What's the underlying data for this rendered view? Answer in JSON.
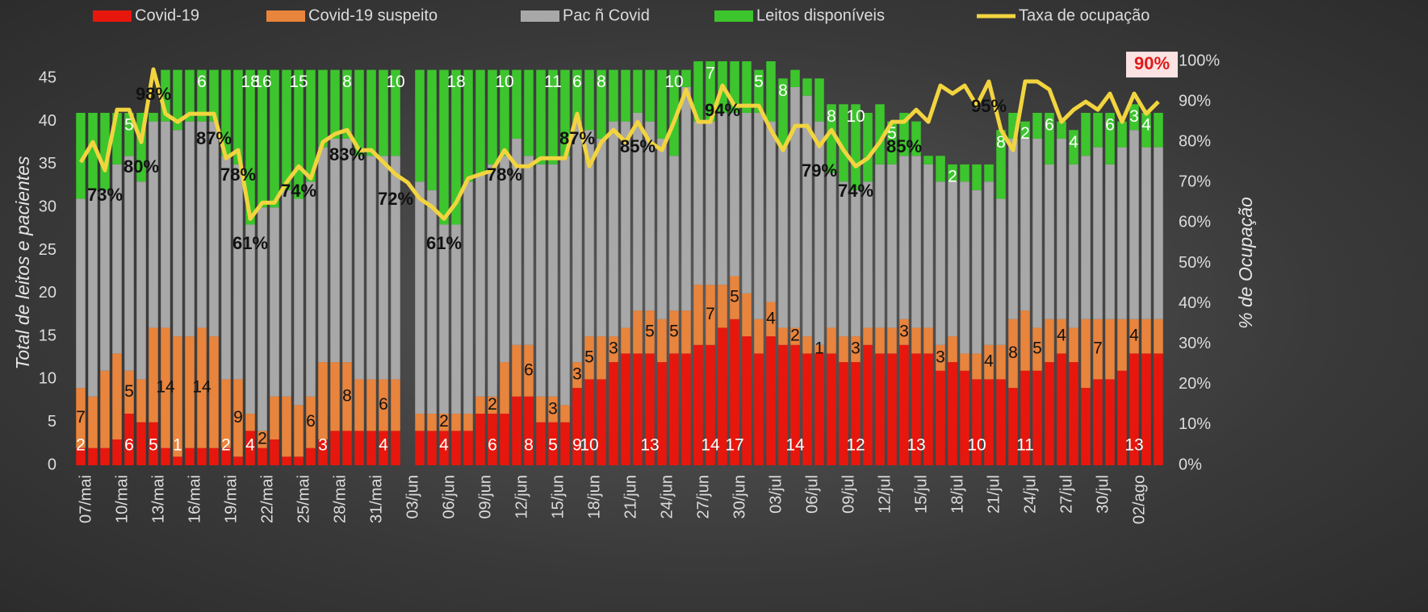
{
  "chart_data": {
    "type": "bar",
    "categories": [
      "07/mai",
      null,
      null,
      "10/mai",
      null,
      null,
      "13/mai",
      null,
      null,
      "16/mai",
      null,
      null,
      "19/mai",
      null,
      null,
      "22/mai",
      null,
      null,
      "25/mai",
      null,
      null,
      "28/mai",
      null,
      null,
      "31/mai",
      null,
      null,
      "03/jun",
      null,
      null,
      "06/jun",
      null,
      null,
      "09/jun",
      null,
      null,
      "12/jun",
      null,
      null,
      "15/jun",
      null,
      null,
      "18/jun",
      null,
      null,
      "21/jun",
      null,
      null,
      "24/jun",
      null,
      null,
      "27/jun",
      null,
      null,
      "30/jun",
      null,
      null,
      "03/jul",
      null,
      null,
      "06/jul",
      null,
      null,
      "09/jul",
      null,
      null,
      "12/jul",
      null,
      null,
      "15/jul",
      null,
      null,
      "18/jul",
      null,
      null,
      "21/jul",
      null,
      null,
      "24/jul",
      null,
      null,
      "27/jul",
      null,
      null,
      "30/jul",
      null,
      null,
      "02/ago",
      null,
      null
    ],
    "y_label": "Total de leitos e pacientes",
    "y2_label": "% de Ocupação",
    "ylim": [
      0,
      47
    ],
    "yticks": [
      0,
      5,
      10,
      15,
      20,
      25,
      30,
      35,
      40,
      45
    ],
    "y2lim": [
      0,
      100
    ],
    "y2ticks": [
      {
        "value": 0,
        "label": "0%"
      },
      {
        "value": 10,
        "label": "10%"
      },
      {
        "value": 20,
        "label": "20%"
      },
      {
        "value": 30,
        "label": "30%"
      },
      {
        "value": 40,
        "label": "40%"
      },
      {
        "value": 50,
        "label": "50%"
      },
      {
        "value": 60,
        "label": "60%"
      },
      {
        "value": 70,
        "label": "70%"
      },
      {
        "value": 80,
        "label": "80%"
      },
      {
        "value": 90,
        "label": "90%"
      },
      {
        "value": 100,
        "label": "100%"
      }
    ],
    "legend": "top",
    "series": [
      {
        "name": "Covid-19",
        "color": "#e8170d",
        "stack": true,
        "values": [
          2,
          2,
          2,
          3,
          6,
          5,
          5,
          2,
          1,
          2,
          2,
          2,
          2,
          1,
          4,
          2,
          3,
          1,
          1,
          2,
          3,
          4,
          4,
          4,
          4,
          4,
          4,
          null,
          4,
          4,
          4,
          4,
          4,
          6,
          6,
          6,
          8,
          8,
          5,
          5,
          5,
          9,
          10,
          10,
          12,
          13,
          13,
          13,
          12,
          13,
          13,
          14,
          14,
          16,
          17,
          15,
          13,
          15,
          14,
          14,
          13,
          13,
          13,
          12,
          12,
          14,
          13,
          13,
          14,
          13,
          13,
          11,
          12,
          11,
          10,
          10,
          10,
          9,
          11,
          11,
          12,
          13,
          12,
          9,
          10,
          10,
          11,
          13,
          13,
          13
        ],
        "value_labels": {
          "0": "2",
          "4": "6",
          "6": "5",
          "8": "1",
          "12": "2",
          "14": "4",
          "20": "3",
          "25": "4",
          "30": "4",
          "34": "6",
          "37": "8",
          "39": "5",
          "41": "9",
          "42": "10",
          "47": "13",
          "52": "14",
          "54": "17",
          "59": "14",
          "64": "12",
          "69": "13",
          "74": "10",
          "78": "11",
          "87": "13"
        }
      },
      {
        "name": "Covid-19 suspeito",
        "color": "#e9843c",
        "stack": true,
        "values": [
          7,
          6,
          9,
          10,
          5,
          5,
          11,
          14,
          14,
          13,
          14,
          13,
          8,
          9,
          2,
          2,
          5,
          7,
          6,
          6,
          9,
          8,
          8,
          6,
          6,
          6,
          6,
          null,
          2,
          2,
          2,
          2,
          2,
          2,
          2,
          6,
          6,
          6,
          3,
          3,
          2,
          3,
          5,
          5,
          3,
          3,
          5,
          5,
          5,
          5,
          5,
          7,
          7,
          5,
          5,
          5,
          4,
          4,
          2,
          2,
          2,
          1,
          3,
          3,
          3,
          2,
          3,
          3,
          3,
          3,
          3,
          3,
          3,
          2,
          3,
          4,
          4,
          8,
          7,
          5,
          5,
          4,
          4,
          8,
          7,
          7,
          6,
          4,
          4,
          4
        ],
        "value_labels": {
          "0": "7",
          "4": "5",
          "7": "14",
          "10": "14",
          "13": "9",
          "15": "2",
          "19": "6",
          "22": "8",
          "25": "6",
          "30": "2",
          "34": "2",
          "37": "6",
          "39": "3",
          "41": "3",
          "42": "5",
          "44": "3",
          "47": "5",
          "49": "5",
          "52": "7",
          "54": "5",
          "57": "4",
          "59": "2",
          "61": "1",
          "64": "3",
          "68": "3",
          "71": "3",
          "75": "4",
          "77": "8",
          "79": "5",
          "81": "4",
          "84": "7",
          "87": "4"
        }
      },
      {
        "name": "Pac ñ Covid",
        "color": "#a8a8a8",
        "stack": true,
        "values": [
          22,
          24,
          21,
          22,
          25,
          23,
          24,
          24,
          24,
          25,
          24,
          25,
          26,
          25,
          22,
          26,
          22,
          24,
          24,
          25,
          25,
          26,
          26,
          26,
          26,
          26,
          26,
          null,
          27,
          26,
          22,
          22,
          27,
          26,
          27,
          24,
          24,
          22,
          27,
          27,
          29,
          28,
          24,
          23,
          25,
          24,
          23,
          22,
          21,
          18,
          26,
          19,
          19,
          20,
          19,
          21,
          24,
          21,
          21,
          28,
          28,
          26,
          18,
          18,
          17,
          17,
          19,
          19,
          19,
          20,
          19,
          19,
          18,
          20,
          19,
          19,
          17,
          21,
          20,
          22,
          18,
          21,
          19,
          19,
          20,
          18,
          20,
          22,
          20,
          20
        ]
      },
      {
        "name": "Leitos disponíveis",
        "color": "#3dc52d",
        "stack": true,
        "values": [
          10,
          9,
          9,
          6,
          5,
          8,
          1,
          6,
          7,
          6,
          6,
          6,
          10,
          11,
          18,
          16,
          16,
          14,
          15,
          13,
          9,
          8,
          8,
          10,
          10,
          10,
          10,
          null,
          13,
          14,
          18,
          18,
          13,
          12,
          11,
          10,
          8,
          10,
          11,
          11,
          10,
          6,
          7,
          8,
          6,
          6,
          5,
          6,
          8,
          10,
          2,
          7,
          7,
          6,
          6,
          6,
          5,
          7,
          8,
          2,
          2,
          5,
          8,
          9,
          10,
          8,
          7,
          5,
          5,
          4,
          1,
          3,
          2,
          2,
          3,
          2,
          8,
          3,
          2,
          3,
          6,
          2,
          4,
          5,
          4,
          6,
          3,
          3,
          4,
          4
        ],
        "value_labels": {
          "4": "5",
          "10": "6",
          "14": "18",
          "15": "16",
          "18": "15",
          "22": "8",
          "26": "10",
          "31": "18",
          "35": "10",
          "39": "11",
          "41": "6",
          "43": "8",
          "49": "10",
          "52": "7",
          "56": "5",
          "58": "8",
          "62": "8",
          "64": "10",
          "67": "5",
          "72": "2",
          "76": "8",
          "78": "2",
          "80": "6",
          "82": "4",
          "85": "6",
          "87": "3",
          "88": "4"
        }
      },
      {
        "name": "Taxa de ocupação",
        "color": "#f2d43f",
        "axis": "y2",
        "kind": "line",
        "values": [
          75,
          80,
          73,
          88,
          88,
          80,
          98,
          87,
          85,
          87,
          87,
          87,
          76,
          78,
          61,
          65,
          65,
          70,
          74,
          71,
          80,
          82,
          83,
          78,
          78,
          75,
          72,
          70,
          66,
          64,
          61,
          65,
          71,
          72,
          73,
          78,
          74,
          74,
          76,
          76,
          76,
          87,
          74,
          80,
          83,
          80,
          85,
          80,
          78,
          85,
          93,
          85,
          85,
          94,
          89,
          89,
          89,
          83,
          78,
          84,
          84,
          79,
          83,
          78,
          74,
          76,
          80,
          85,
          85,
          88,
          85,
          94,
          92,
          94,
          89,
          95,
          83,
          78,
          95,
          95,
          93,
          85,
          88,
          90,
          88,
          92,
          85,
          92,
          87,
          90
        ],
        "value_labels": {
          "2": "73%",
          "5": "80%",
          "6": "98%",
          "11": "87%",
          "13": "78%",
          "14": "61%",
          "18": "74%",
          "22": "83%",
          "26": "72%",
          "30": "61%",
          "35": "78%",
          "41": "87%",
          "46": "85%",
          "53": "94%",
          "61": "79%",
          "64": "74%",
          "68": "85%",
          "75": "95%",
          "89": "90%"
        }
      }
    ]
  }
}
